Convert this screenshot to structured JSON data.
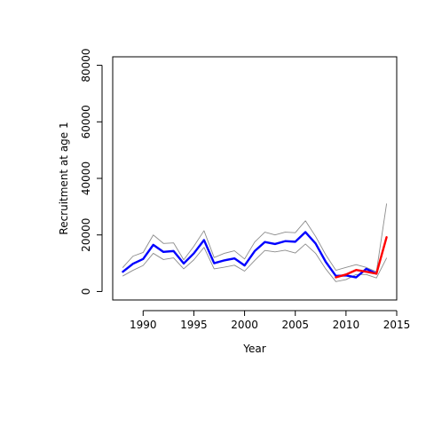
{
  "chart_data": {
    "type": "line",
    "xlabel": "Year",
    "ylabel": "Recruitment at age 1",
    "xlim": [
      1987,
      2015
    ],
    "ylim": [
      -3000,
      83000
    ],
    "x_ticks": [
      1990,
      1995,
      2000,
      2005,
      2010,
      2015
    ],
    "y_ticks": [
      0,
      20000,
      40000,
      60000,
      80000
    ],
    "x_tick_labels": [
      "1990",
      "1995",
      "2000",
      "2005",
      "2010",
      "2015"
    ],
    "y_tick_labels": [
      "0",
      "20000",
      "40000",
      "60000",
      "80000"
    ],
    "grid": false,
    "legend": "none",
    "series": [
      {
        "role": "upper-bound",
        "color": "#8c8c8c",
        "x": [
          1988,
          1989,
          1990,
          1991,
          1992,
          1993,
          1994,
          1995,
          1996,
          1997,
          1998,
          1999,
          2000,
          2001,
          2002,
          2003,
          2004,
          2005,
          2006,
          2007,
          2008,
          2009,
          2010,
          2011,
          2012,
          2013,
          2014
        ],
        "values": [
          8500,
          12500,
          13800,
          20000,
          17000,
          17200,
          11200,
          16000,
          21500,
          12000,
          13500,
          14400,
          11500,
          17500,
          21000,
          20000,
          21000,
          20800,
          25000,
          19500,
          13000,
          7500,
          8500,
          9500,
          8500,
          7000,
          31000
        ]
      },
      {
        "role": "lower-bound",
        "color": "#8c8c8c",
        "x": [
          1988,
          1989,
          1990,
          1991,
          1992,
          1993,
          1994,
          1995,
          1996,
          1997,
          1998,
          1999,
          2000,
          2001,
          2002,
          2003,
          2004,
          2005,
          2006,
          2007,
          2008,
          2009,
          2010,
          2011,
          2012,
          2013,
          2014
        ],
        "values": [
          5500,
          7500,
          9200,
          13500,
          11300,
          11900,
          8000,
          11200,
          15600,
          8000,
          8600,
          9300,
          7200,
          11000,
          14500,
          14000,
          14600,
          13600,
          16800,
          13500,
          8000,
          3500,
          4200,
          6000,
          6000,
          4800,
          11800
        ]
      },
      {
        "role": "model-estimate",
        "color": "#0000ff",
        "x": [
          1988,
          1989,
          1990,
          1991,
          1992,
          1993,
          1994,
          1995,
          1996,
          1997,
          1998,
          1999,
          2000,
          2001,
          2002,
          2003,
          2004,
          2005,
          2006,
          2007,
          2008,
          2009,
          2010,
          2011,
          2012,
          2013
        ],
        "values": [
          7000,
          9800,
          11500,
          16500,
          14000,
          14300,
          9900,
          13500,
          18200,
          10000,
          11000,
          11700,
          9200,
          14300,
          17500,
          16800,
          17800,
          17600,
          21000,
          17000,
          10500,
          5500,
          5700,
          5000,
          8000,
          6300
        ]
      },
      {
        "role": "recent-estimate",
        "color": "#ff0000",
        "x": [
          2009,
          2010,
          2011,
          2012,
          2013,
          2014
        ],
        "values": [
          5000,
          6000,
          7600,
          7000,
          6300,
          19200
        ]
      }
    ]
  }
}
